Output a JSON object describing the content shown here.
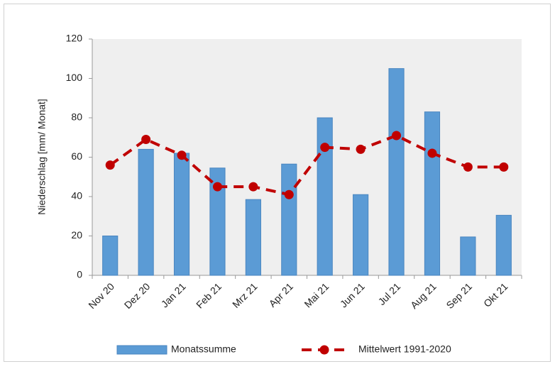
{
  "chart_data": {
    "type": "bar-line",
    "y_label": "Niederschlag [mm/ Monat]",
    "categories": [
      "Nov 20",
      "Dez 20",
      "Jan 21",
      "Feb 21",
      "Mrz 21",
      "Apr 21",
      "Mai 21",
      "Jun 21",
      "Jul 21",
      "Aug 21",
      "Sep 21",
      "Okt 21"
    ],
    "series": [
      {
        "name": "Monatssumme",
        "type": "bar",
        "color": "#5b9bd5",
        "values": [
          20,
          64,
          62,
          54.5,
          38.5,
          56.5,
          80,
          41,
          105,
          83,
          19.5,
          30.5
        ]
      },
      {
        "name": "Mittelwert 1991-2020",
        "type": "line",
        "color": "#c00000",
        "values": [
          56,
          69,
          61,
          45,
          45,
          41,
          65,
          64,
          71,
          62,
          55,
          55
        ]
      }
    ],
    "ylim": [
      0,
      120
    ],
    "yticks": [
      0,
      20,
      40,
      60,
      80,
      100,
      120
    ],
    "grid": false
  }
}
